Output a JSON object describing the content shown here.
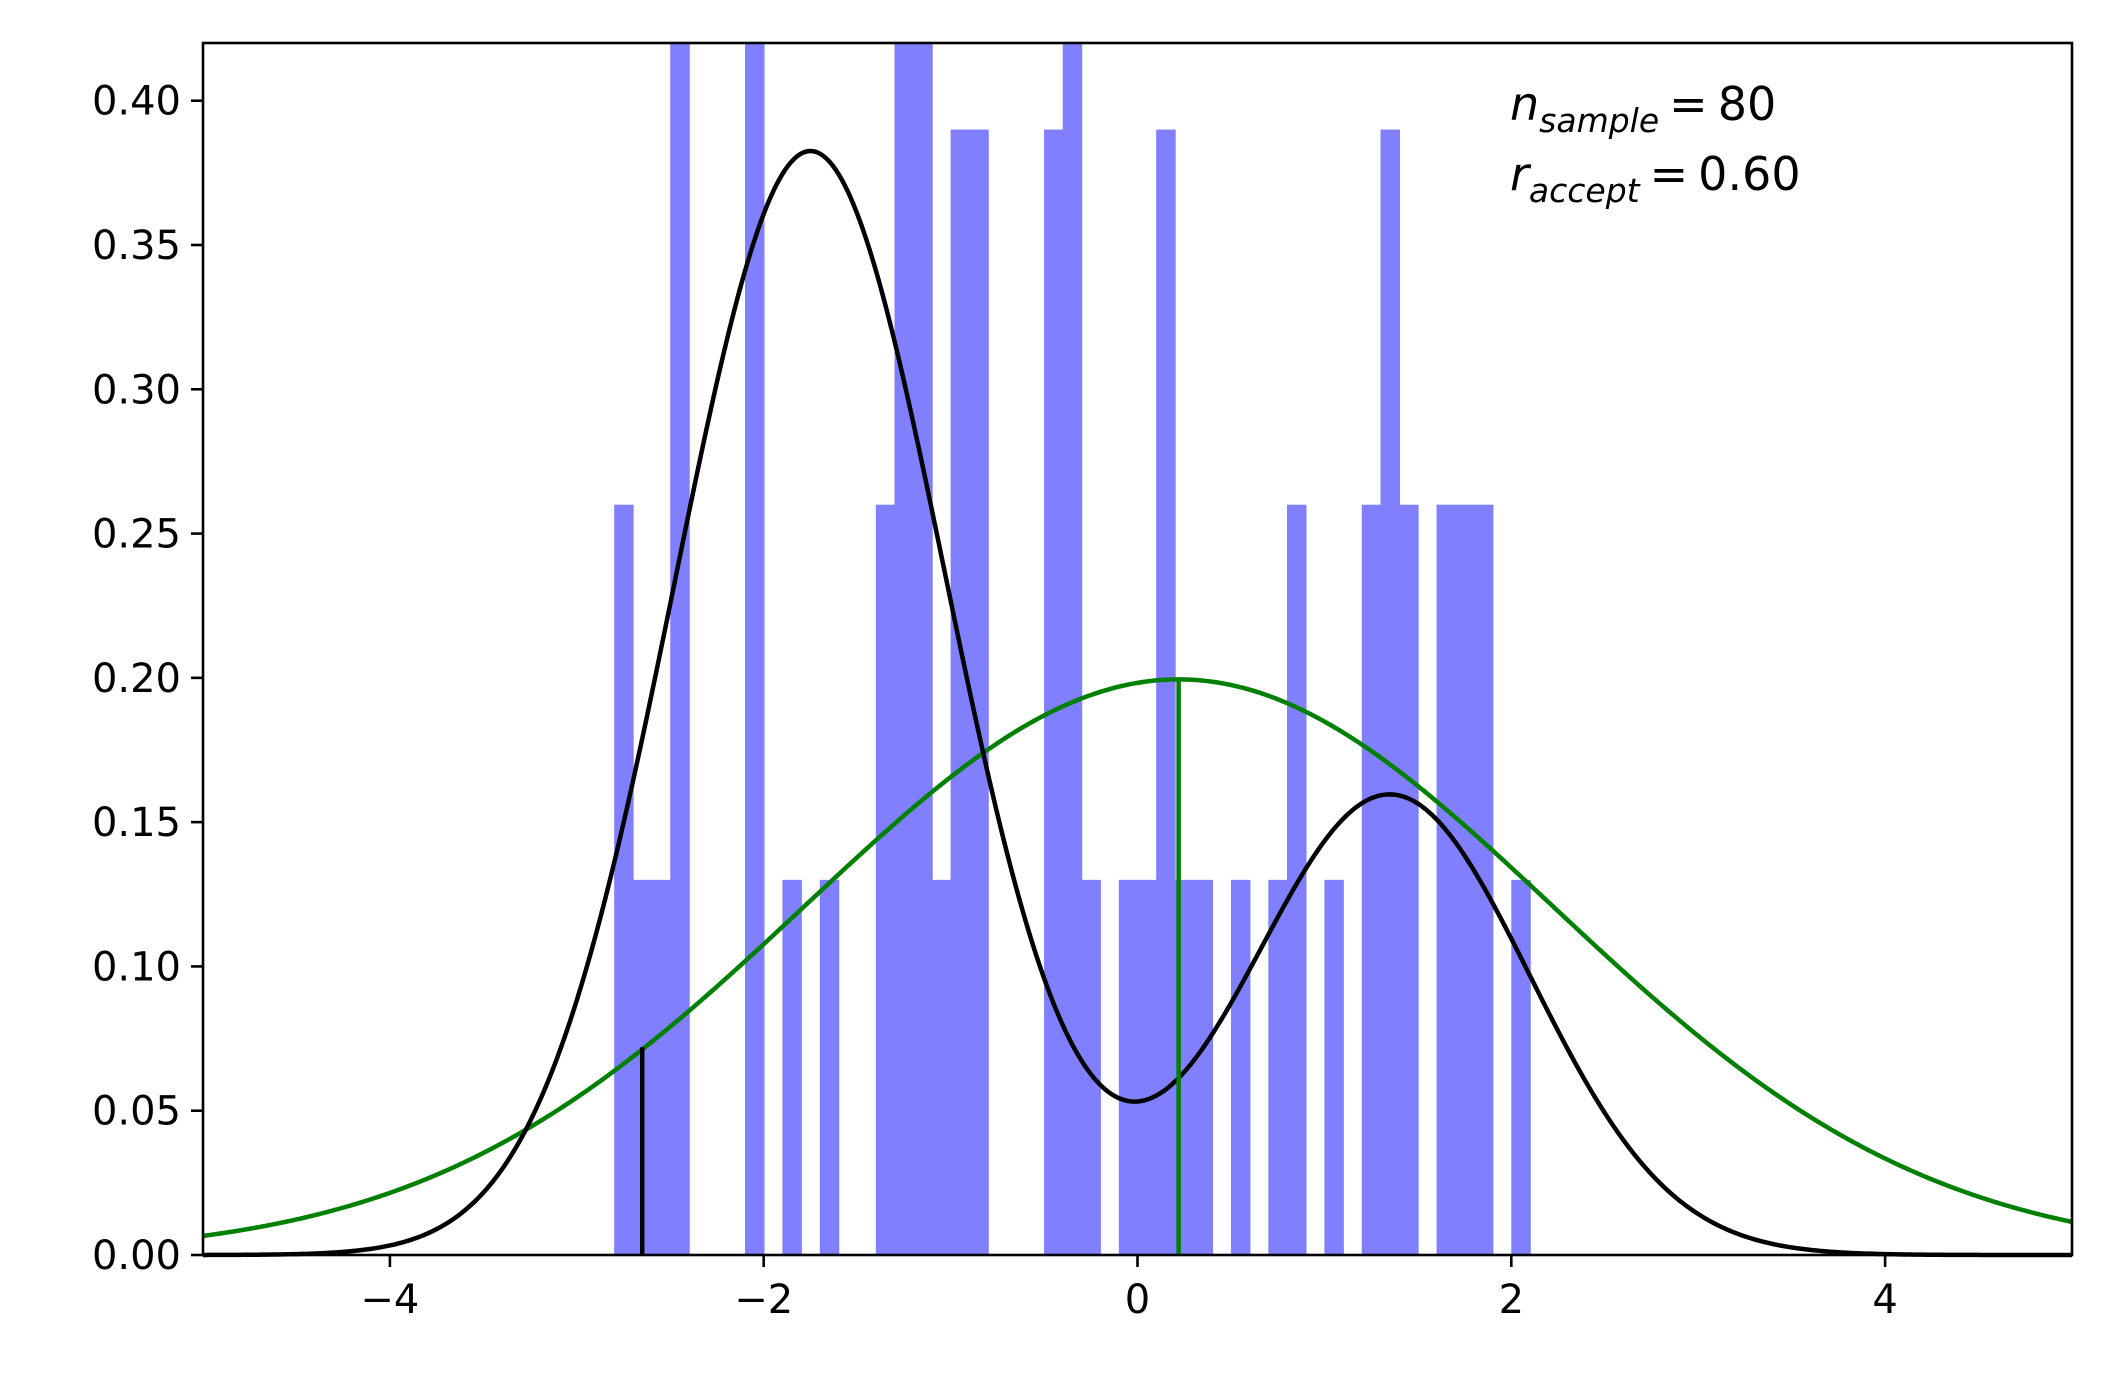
{
  "chart_data": {
    "type": "bar",
    "histogram": {
      "color": "#8080ff",
      "bin_width": 0.1,
      "bins": [
        [
          -2.75,
          0.26
        ],
        [
          -2.65,
          0.13
        ],
        [
          -2.55,
          0.13
        ],
        [
          -2.45,
          0.42
        ],
        [
          -2.05,
          0.42
        ],
        [
          -1.85,
          0.13
        ],
        [
          -1.65,
          0.13
        ],
        [
          -1.35,
          0.26
        ],
        [
          -1.25,
          0.42
        ],
        [
          -1.15,
          0.42
        ],
        [
          -1.05,
          0.13
        ],
        [
          -0.95,
          0.39
        ],
        [
          -0.85,
          0.39
        ],
        [
          -0.45,
          0.39
        ],
        [
          -0.35,
          0.42
        ],
        [
          -0.25,
          0.13
        ],
        [
          -0.05,
          0.13
        ],
        [
          0.05,
          0.13
        ],
        [
          0.15,
          0.39
        ],
        [
          0.25,
          0.13
        ],
        [
          0.35,
          0.13
        ],
        [
          0.55,
          0.13
        ],
        [
          0.75,
          0.13
        ],
        [
          0.85,
          0.26
        ],
        [
          1.05,
          0.13
        ],
        [
          1.25,
          0.26
        ],
        [
          1.35,
          0.39
        ],
        [
          1.45,
          0.26
        ],
        [
          1.65,
          0.26
        ],
        [
          1.75,
          0.26
        ],
        [
          1.85,
          0.26
        ],
        [
          2.05,
          0.13
        ]
      ]
    },
    "target_pdf": {
      "color": "#000000",
      "components": [
        {
          "weight": 0.7,
          "mean": -1.75,
          "sd": 0.73
        },
        {
          "weight": 0.3,
          "mean": 1.35,
          "sd": 0.75
        }
      ]
    },
    "proposal_pdf": {
      "color": "#008000",
      "mean": 0.22,
      "sd": 2.0
    },
    "vertical_lines": [
      {
        "x": -2.65,
        "y": 0.072,
        "color": "#000000"
      },
      {
        "x": 0.22,
        "y": 0.2,
        "color": "#008000"
      }
    ],
    "xlim": [
      -5,
      5
    ],
    "ylim": [
      0,
      0.42
    ],
    "xticks": [
      -4,
      -2,
      0,
      2,
      4
    ],
    "xtick_labels": [
      "−4",
      "−2",
      "0",
      "2",
      "4"
    ],
    "yticks": [
      0.0,
      0.05,
      0.1,
      0.15,
      0.2,
      0.25,
      0.3,
      0.35,
      0.4
    ],
    "ytick_labels": [
      "0.00",
      "0.05",
      "0.10",
      "0.15",
      "0.20",
      "0.25",
      "0.30",
      "0.35",
      "0.40"
    ],
    "annotations": {
      "n_var": "n",
      "n_sub": "sample",
      "n_value": "80",
      "r_var": "r",
      "r_sub": "accept",
      "r_value": "0.60",
      "equals": "="
    }
  }
}
